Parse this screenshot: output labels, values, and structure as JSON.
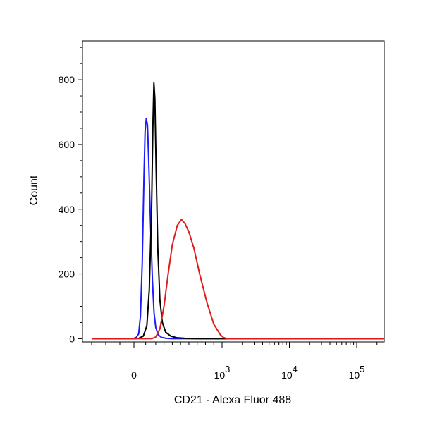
{
  "chart_data": {
    "type": "line",
    "title": "",
    "xlabel": "CD21 - Alexa Fluor 488",
    "ylabel": "Count",
    "x_scale": "logicle",
    "xlim": [
      -300,
      250000
    ],
    "ylim": [
      -10,
      920
    ],
    "grid": false,
    "legend": "none",
    "x_ticks": [
      {
        "value": 0,
        "base": "0",
        "exp": ""
      },
      {
        "value": 1000,
        "base": "10",
        "exp": "3"
      },
      {
        "value": 10000,
        "base": "10",
        "exp": "4"
      },
      {
        "value": 100000,
        "base": "10",
        "exp": "5"
      }
    ],
    "y_ticks": [
      0,
      200,
      400,
      600,
      800
    ],
    "series": [
      {
        "color": "#1a1aff",
        "points": [
          [
            -300,
            0
          ],
          [
            -100,
            0
          ],
          [
            0,
            1
          ],
          [
            20,
            4
          ],
          [
            40,
            15
          ],
          [
            55,
            70
          ],
          [
            70,
            230
          ],
          [
            85,
            500
          ],
          [
            95,
            640
          ],
          [
            105,
            680
          ],
          [
            115,
            660
          ],
          [
            125,
            560
          ],
          [
            140,
            370
          ],
          [
            160,
            180
          ],
          [
            180,
            80
          ],
          [
            200,
            35
          ],
          [
            230,
            12
          ],
          [
            270,
            4
          ],
          [
            330,
            1
          ],
          [
            400,
            0
          ],
          [
            250000,
            0
          ]
        ]
      },
      {
        "color": "#000000",
        "points": [
          [
            -300,
            0
          ],
          [
            0,
            0
          ],
          [
            40,
            1
          ],
          [
            80,
            8
          ],
          [
            110,
            40
          ],
          [
            130,
            150
          ],
          [
            150,
            400
          ],
          [
            165,
            650
          ],
          [
            178,
            790
          ],
          [
            190,
            740
          ],
          [
            205,
            520
          ],
          [
            225,
            280
          ],
          [
            250,
            120
          ],
          [
            280,
            50
          ],
          [
            320,
            20
          ],
          [
            380,
            8
          ],
          [
            450,
            3
          ],
          [
            550,
            1
          ],
          [
            700,
            0
          ],
          [
            250000,
            0
          ]
        ]
      },
      {
        "color": "#e01c1c",
        "points": [
          [
            -300,
            0
          ],
          [
            0,
            0
          ],
          [
            150,
            0
          ],
          [
            200,
            5
          ],
          [
            250,
            30
          ],
          [
            300,
            100
          ],
          [
            350,
            200
          ],
          [
            400,
            290
          ],
          [
            460,
            350
          ],
          [
            510,
            368
          ],
          [
            555,
            355
          ],
          [
            600,
            330
          ],
          [
            660,
            280
          ],
          [
            730,
            200
          ],
          [
            820,
            110
          ],
          [
            900,
            45
          ],
          [
            980,
            12
          ],
          [
            1060,
            3
          ],
          [
            1200,
            0
          ],
          [
            250000,
            0
          ]
        ]
      }
    ]
  }
}
